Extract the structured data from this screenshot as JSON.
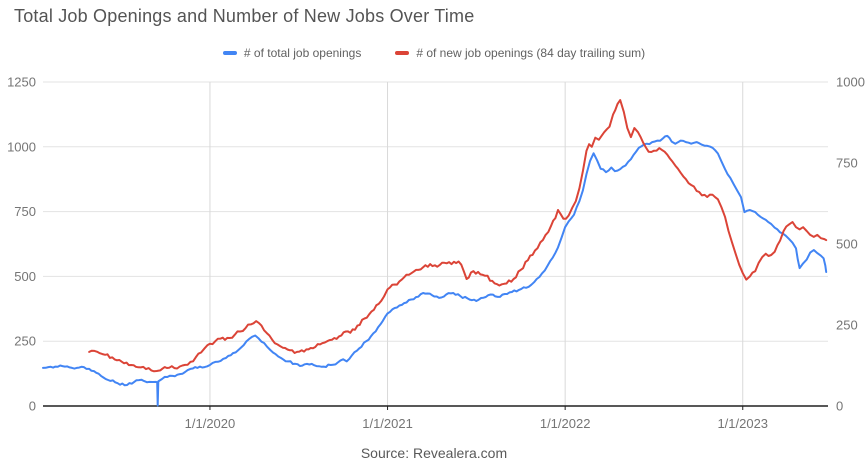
{
  "title": "Total Job Openings and Number of New Jobs Over Time",
  "source": "Source: Revealera.com",
  "colors": {
    "series_blue": "#4285f4",
    "series_red": "#db4437",
    "grid_horizontal": "#e3e3e3",
    "grid_vertical": "#d9d9d9",
    "axis_line": "#212121",
    "tick_label": "#757575",
    "background": "#ffffff"
  },
  "chart_data": {
    "type": "line",
    "title": "Total Job Openings and Number of New Jobs Over Time",
    "legend_position": "top",
    "grid": {
      "horizontal": true,
      "vertical": true
    },
    "x_axis": {
      "domain": [
        2019.06,
        2023.48
      ],
      "ticks": [
        {
          "t": 2020,
          "label": "1/1/2020"
        },
        {
          "t": 2021,
          "label": "1/1/2021"
        },
        {
          "t": 2022,
          "label": "1/1/2022"
        },
        {
          "t": 2023,
          "label": "1/1/2023"
        }
      ]
    },
    "y_left": {
      "domain": [
        0,
        1250
      ],
      "ticks": [
        0,
        250,
        500,
        750,
        1000,
        1250
      ]
    },
    "y_right": {
      "domain": [
        0,
        1000
      ],
      "ticks": [
        0,
        250,
        500,
        750,
        1000
      ]
    },
    "series": [
      {
        "name": "# of total job openings",
        "color": "#4285f4",
        "axis": "left",
        "points": [
          [
            2019.06,
            147
          ],
          [
            2019.09,
            150
          ],
          [
            2019.13,
            152
          ],
          [
            2019.17,
            154
          ],
          [
            2019.21,
            149
          ],
          [
            2019.25,
            147
          ],
          [
            2019.29,
            150
          ],
          [
            2019.32,
            143
          ],
          [
            2019.36,
            128
          ],
          [
            2019.4,
            110
          ],
          [
            2019.44,
            97
          ],
          [
            2019.48,
            88
          ],
          [
            2019.52,
            80
          ],
          [
            2019.56,
            86
          ],
          [
            2019.6,
            100
          ],
          [
            2019.63,
            96
          ],
          [
            2019.66,
            93
          ],
          [
            2019.695,
            93
          ],
          [
            2019.703,
            92
          ],
          [
            2019.706,
            2
          ],
          [
            2019.709,
            95
          ],
          [
            2019.73,
            104
          ],
          [
            2019.76,
            112
          ],
          [
            2019.79,
            116
          ],
          [
            2019.83,
            123
          ],
          [
            2019.86,
            131
          ],
          [
            2019.89,
            143
          ],
          [
            2019.93,
            147
          ],
          [
            2019.97,
            150
          ],
          [
            2020.0,
            158
          ],
          [
            2020.03,
            170
          ],
          [
            2020.06,
            174
          ],
          [
            2020.09,
            185
          ],
          [
            2020.13,
            204
          ],
          [
            2020.16,
            216
          ],
          [
            2020.19,
            235
          ],
          [
            2020.22,
            258
          ],
          [
            2020.255,
            272
          ],
          [
            2020.29,
            248
          ],
          [
            2020.32,
            230
          ],
          [
            2020.34,
            216
          ],
          [
            2020.37,
            200
          ],
          [
            2020.4,
            185
          ],
          [
            2020.44,
            172
          ],
          [
            2020.48,
            163
          ],
          [
            2020.52,
            156
          ],
          [
            2020.56,
            160
          ],
          [
            2020.6,
            154
          ],
          [
            2020.64,
            152
          ],
          [
            2020.68,
            158
          ],
          [
            2020.72,
            168
          ],
          [
            2020.75,
            180
          ],
          [
            2020.77,
            172
          ],
          [
            2020.8,
            196
          ],
          [
            2020.84,
            222
          ],
          [
            2020.88,
            250
          ],
          [
            2020.92,
            280
          ],
          [
            2020.96,
            315
          ],
          [
            2021.0,
            357
          ],
          [
            2021.04,
            378
          ],
          [
            2021.08,
            390
          ],
          [
            2021.12,
            409
          ],
          [
            2021.16,
            420
          ],
          [
            2021.2,
            436
          ],
          [
            2021.25,
            428
          ],
          [
            2021.29,
            417
          ],
          [
            2021.33,
            430
          ],
          [
            2021.37,
            436
          ],
          [
            2021.41,
            424
          ],
          [
            2021.45,
            415
          ],
          [
            2021.5,
            405
          ],
          [
            2021.54,
            418
          ],
          [
            2021.58,
            430
          ],
          [
            2021.62,
            421
          ],
          [
            2021.66,
            432
          ],
          [
            2021.7,
            440
          ],
          [
            2021.74,
            448
          ],
          [
            2021.78,
            456
          ],
          [
            2021.81,
            468
          ],
          [
            2021.84,
            490
          ],
          [
            2021.87,
            512
          ],
          [
            2021.9,
            540
          ],
          [
            2021.93,
            572
          ],
          [
            2021.96,
            612
          ],
          [
            2021.98,
            650
          ],
          [
            2022.0,
            690
          ],
          [
            2022.02,
            712
          ],
          [
            2022.05,
            738
          ],
          [
            2022.08,
            790
          ],
          [
            2022.1,
            832
          ],
          [
            2022.12,
            895
          ],
          [
            2022.14,
            945
          ],
          [
            2022.16,
            975
          ],
          [
            2022.18,
            948
          ],
          [
            2022.2,
            915
          ],
          [
            2022.23,
            902
          ],
          [
            2022.26,
            920
          ],
          [
            2022.28,
            906
          ],
          [
            2022.31,
            914
          ],
          [
            2022.34,
            928
          ],
          [
            2022.37,
            952
          ],
          [
            2022.4,
            982
          ],
          [
            2022.43,
            1002
          ],
          [
            2022.46,
            1012
          ],
          [
            2022.49,
            1018
          ],
          [
            2022.52,
            1024
          ],
          [
            2022.55,
            1032
          ],
          [
            2022.575,
            1042
          ],
          [
            2022.6,
            1020
          ],
          [
            2022.62,
            1012
          ],
          [
            2022.65,
            1024
          ],
          [
            2022.68,
            1018
          ],
          [
            2022.71,
            1012
          ],
          [
            2022.74,
            1018
          ],
          [
            2022.77,
            1008
          ],
          [
            2022.8,
            1004
          ],
          [
            2022.83,
            996
          ],
          [
            2022.86,
            974
          ],
          [
            2022.88,
            944
          ],
          [
            2022.9,
            914
          ],
          [
            2022.93,
            880
          ],
          [
            2022.95,
            854
          ],
          [
            2022.97,
            830
          ],
          [
            2022.99,
            806
          ],
          [
            2023.01,
            748
          ],
          [
            2023.04,
            756
          ],
          [
            2023.07,
            748
          ],
          [
            2023.1,
            730
          ],
          [
            2023.13,
            718
          ],
          [
            2023.16,
            702
          ],
          [
            2023.18,
            688
          ],
          [
            2023.21,
            670
          ],
          [
            2023.24,
            658
          ],
          [
            2023.26,
            645
          ],
          [
            2023.28,
            630
          ],
          [
            2023.3,
            608
          ],
          [
            2023.31,
            565
          ],
          [
            2023.32,
            532
          ],
          [
            2023.34,
            550
          ],
          [
            2023.36,
            565
          ],
          [
            2023.38,
            592
          ],
          [
            2023.4,
            602
          ],
          [
            2023.42,
            590
          ],
          [
            2023.44,
            580
          ],
          [
            2023.455,
            570
          ],
          [
            2023.465,
            542
          ],
          [
            2023.47,
            517
          ]
        ]
      },
      {
        "name": "# of new job openings (84 day trailing sum)",
        "color": "#db4437",
        "axis": "right",
        "points": [
          [
            2019.32,
            167
          ],
          [
            2019.35,
            170
          ],
          [
            2019.38,
            163
          ],
          [
            2019.41,
            158
          ],
          [
            2019.45,
            150
          ],
          [
            2019.49,
            142
          ],
          [
            2019.53,
            134
          ],
          [
            2019.57,
            126
          ],
          [
            2019.61,
            119
          ],
          [
            2019.64,
            114
          ],
          [
            2019.67,
            110
          ],
          [
            2019.7,
            108
          ],
          [
            2019.72,
            110
          ],
          [
            2019.745,
            120
          ],
          [
            2019.77,
            118
          ],
          [
            2019.8,
            117
          ],
          [
            2019.83,
            122
          ],
          [
            2019.86,
            127
          ],
          [
            2019.89,
            136
          ],
          [
            2019.92,
            150
          ],
          [
            2019.95,
            165
          ],
          [
            2019.97,
            178
          ],
          [
            2020.0,
            192
          ],
          [
            2020.03,
            200
          ],
          [
            2020.06,
            208
          ],
          [
            2020.085,
            204
          ],
          [
            2020.11,
            210
          ],
          [
            2020.14,
            220
          ],
          [
            2020.17,
            230
          ],
          [
            2020.2,
            240
          ],
          [
            2020.23,
            252
          ],
          [
            2020.26,
            262
          ],
          [
            2020.29,
            248
          ],
          [
            2020.32,
            225
          ],
          [
            2020.35,
            205
          ],
          [
            2020.38,
            190
          ],
          [
            2020.41,
            180
          ],
          [
            2020.45,
            172
          ],
          [
            2020.49,
            167
          ],
          [
            2020.53,
            168
          ],
          [
            2020.58,
            178
          ],
          [
            2020.62,
            190
          ],
          [
            2020.66,
            200
          ],
          [
            2020.7,
            210
          ],
          [
            2020.74,
            218
          ],
          [
            2020.765,
            230
          ],
          [
            2020.79,
            226
          ],
          [
            2020.83,
            248
          ],
          [
            2020.87,
            270
          ],
          [
            2020.91,
            292
          ],
          [
            2020.95,
            315
          ],
          [
            2020.98,
            338
          ],
          [
            2021.0,
            360
          ],
          [
            2021.04,
            375
          ],
          [
            2021.08,
            390
          ],
          [
            2021.12,
            405
          ],
          [
            2021.16,
            420
          ],
          [
            2021.2,
            428
          ],
          [
            2021.24,
            438
          ],
          [
            2021.28,
            430
          ],
          [
            2021.32,
            442
          ],
          [
            2021.36,
            438
          ],
          [
            2021.4,
            446
          ],
          [
            2021.43,
            415
          ],
          [
            2021.445,
            392
          ],
          [
            2021.47,
            412
          ],
          [
            2021.51,
            414
          ],
          [
            2021.55,
            402
          ],
          [
            2021.59,
            386
          ],
          [
            2021.63,
            372
          ],
          [
            2021.67,
            378
          ],
          [
            2021.71,
            392
          ],
          [
            2021.75,
            420
          ],
          [
            2021.79,
            450
          ],
          [
            2021.83,
            480
          ],
          [
            2021.86,
            505
          ],
          [
            2021.89,
            528
          ],
          [
            2021.92,
            555
          ],
          [
            2021.945,
            580
          ],
          [
            2021.96,
            605
          ],
          [
            2021.975,
            592
          ],
          [
            2021.99,
            578
          ],
          [
            2022.005,
            578
          ],
          [
            2022.02,
            588
          ],
          [
            2022.04,
            612
          ],
          [
            2022.06,
            632
          ],
          [
            2022.08,
            672
          ],
          [
            2022.1,
            725
          ],
          [
            2022.12,
            788
          ],
          [
            2022.135,
            808
          ],
          [
            2022.15,
            800
          ],
          [
            2022.17,
            828
          ],
          [
            2022.19,
            822
          ],
          [
            2022.22,
            845
          ],
          [
            2022.25,
            862
          ],
          [
            2022.27,
            900
          ],
          [
            2022.295,
            932
          ],
          [
            2022.31,
            944
          ],
          [
            2022.33,
            908
          ],
          [
            2022.35,
            858
          ],
          [
            2022.37,
            830
          ],
          [
            2022.39,
            858
          ],
          [
            2022.41,
            845
          ],
          [
            2022.44,
            812
          ],
          [
            2022.47,
            785
          ],
          [
            2022.5,
            788
          ],
          [
            2022.53,
            796
          ],
          [
            2022.56,
            785
          ],
          [
            2022.59,
            764
          ],
          [
            2022.62,
            742
          ],
          [
            2022.65,
            720
          ],
          [
            2022.68,
            700
          ],
          [
            2022.71,
            682
          ],
          [
            2022.74,
            664
          ],
          [
            2022.77,
            650
          ],
          [
            2022.8,
            645
          ],
          [
            2022.83,
            652
          ],
          [
            2022.86,
            638
          ],
          [
            2022.88,
            614
          ],
          [
            2022.9,
            584
          ],
          [
            2022.92,
            540
          ],
          [
            2022.94,
            504
          ],
          [
            2022.96,
            470
          ],
          [
            2022.98,
            436
          ],
          [
            2023.0,
            410
          ],
          [
            2023.02,
            390
          ],
          [
            2023.04,
            400
          ],
          [
            2023.07,
            416
          ],
          [
            2023.09,
            442
          ],
          [
            2023.11,
            460
          ],
          [
            2023.13,
            470
          ],
          [
            2023.16,
            466
          ],
          [
            2023.18,
            476
          ],
          [
            2023.21,
            510
          ],
          [
            2023.23,
            540
          ],
          [
            2023.26,
            560
          ],
          [
            2023.28,
            568
          ],
          [
            2023.3,
            552
          ],
          [
            2023.32,
            545
          ],
          [
            2023.34,
            552
          ],
          [
            2023.36,
            540
          ],
          [
            2023.38,
            528
          ],
          [
            2023.4,
            522
          ],
          [
            2023.42,
            528
          ],
          [
            2023.44,
            518
          ],
          [
            2023.46,
            515
          ],
          [
            2023.47,
            512
          ]
        ]
      }
    ]
  }
}
